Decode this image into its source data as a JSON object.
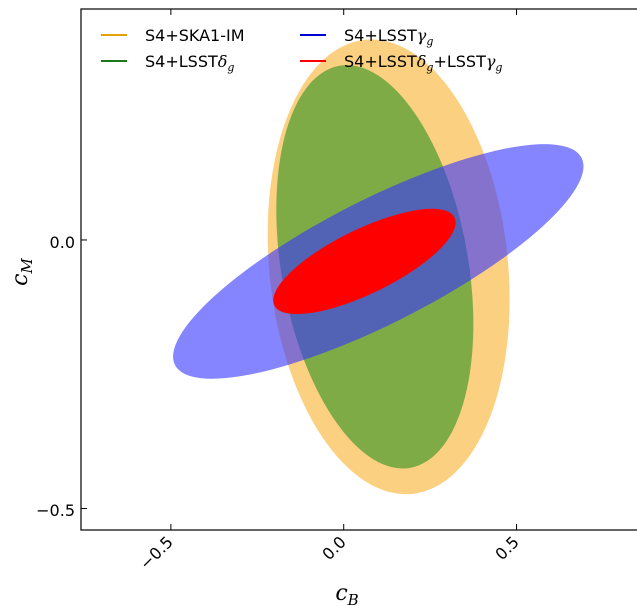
{
  "chart_data": {
    "type": "scatter",
    "title": "",
    "xlabel": "c",
    "xlabel_sub": "B",
    "ylabel": "c",
    "ylabel_sub": "M",
    "xlim": [
      -0.76,
      0.86
    ],
    "ylim": [
      -0.54,
      0.43
    ],
    "xticks": [
      -0.5,
      0.0,
      0.5
    ],
    "xtick_labels": [
      "−0.5",
      "0.0",
      "0.5"
    ],
    "yticks": [
      0.0,
      -0.5
    ],
    "ytick_labels": [
      "0.0",
      "−0.5"
    ],
    "grid": false,
    "legend_position": "top-left",
    "series": [
      {
        "name": "S4+SKA1-IM",
        "legend_color": "#e8a100",
        "fill_color": "#fbc057",
        "opacity": 0.75,
        "center": [
          0.13,
          -0.05
        ],
        "semi_axes": [
          0.345,
          0.425
        ],
        "angle_deg": 6
      },
      {
        "name": "S4+LSSTδg",
        "legend_color": "#1a7a1a",
        "fill_color": "#449a2c",
        "opacity": 0.68,
        "center": [
          0.09,
          -0.05
        ],
        "semi_axes": [
          0.27,
          0.38
        ],
        "angle_deg": 10
      },
      {
        "name": "S4+LSSTγg",
        "legend_color": "#0000d0",
        "fill_color": "#3333ff",
        "opacity": 0.6,
        "center": [
          0.1,
          -0.04
        ],
        "semi_axes": [
          0.66,
          0.115
        ],
        "angle_deg": 27
      },
      {
        "name": "S4+LSSTδg+LSSTγg",
        "legend_color": "#ff0000",
        "fill_color": "#ff0000",
        "opacity": 1.0,
        "center": [
          0.06,
          -0.04
        ],
        "semi_axes": [
          0.29,
          0.06
        ],
        "angle_deg": 26
      }
    ]
  }
}
